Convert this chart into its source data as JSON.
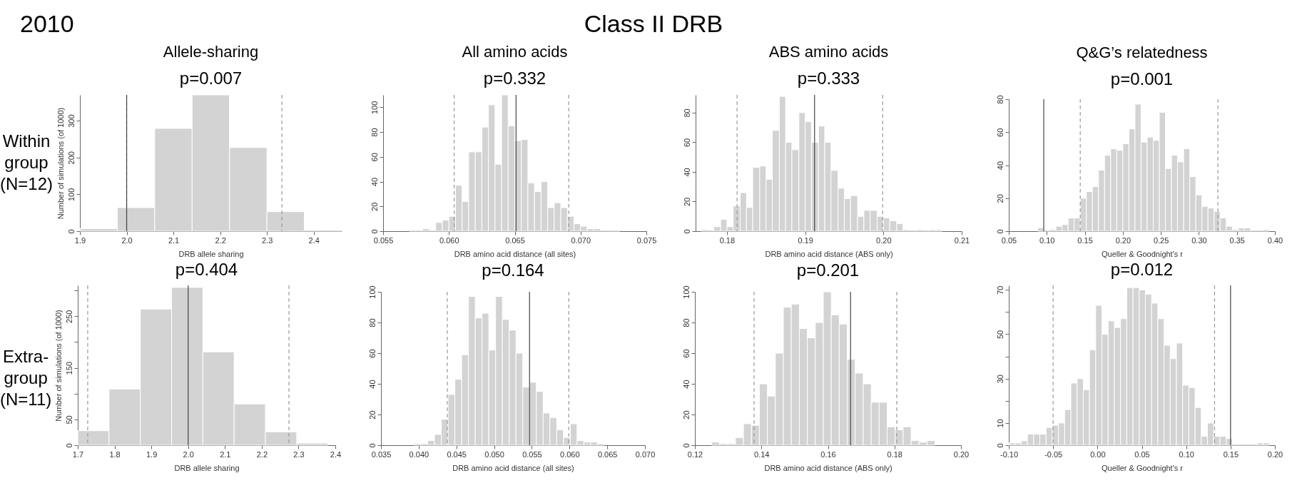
{
  "chart_data": [
    {
      "type": "histogram",
      "title": "Allele-sharing",
      "subtitle": "p=0.007",
      "xlabel": "DRB allele sharing",
      "ylabel": "Number of simulations (of 1000)",
      "color": "#d3d3d3",
      "annotations": [
        "2010",
        "Class II DRB",
        "Within group (N=12)"
      ],
      "bins": [
        1.9,
        1.98,
        2.06,
        2.14,
        2.22,
        2.3,
        2.38,
        2.46
      ],
      "values": [
        7,
        64,
        279,
        370,
        227,
        53,
        0
      ],
      "xlim": [
        1.9,
        2.46
      ],
      "xticks": [
        1.9,
        {
          "value": 2.0,
          "label": "2.0"
        },
        2.1,
        2.2,
        2.3,
        2.4
      ],
      "ylim": [
        0,
        370
      ],
      "yticks": [
        0,
        100,
        200,
        300
      ],
      "ref_lines": [
        {
          "axis": "x",
          "value": 2.0,
          "line_style": "dashed",
          "color": "#999999"
        },
        {
          "axis": "x",
          "value": 2.332,
          "line_style": "dashed",
          "color": "#999999"
        },
        {
          "axis": "x",
          "value": 2.0,
          "line_style": "solid",
          "color": "#444444"
        }
      ]
    },
    {
      "type": "histogram",
      "title": "All amino acids",
      "subtitle": "p=0.332",
      "xlabel": "DRB amino acid distance (all sites)",
      "color": "#d3d3d3",
      "bins": [
        0.057,
        0.0575,
        0.058,
        0.0585,
        0.059,
        0.0595,
        0.06,
        0.0605,
        0.061,
        0.0615,
        0.062,
        0.0625,
        0.063,
        0.0635,
        0.064,
        0.0645,
        0.065,
        0.0655,
        0.066,
        0.0665,
        0.067,
        0.0675,
        0.068,
        0.0685,
        0.069,
        0.0695,
        0.07,
        0.0705,
        0.071,
        0.0715,
        0.072,
        0.0725,
        0.073
      ],
      "values": [
        1,
        0,
        2,
        0,
        7,
        9,
        12,
        37,
        24,
        64,
        64,
        84,
        102,
        54,
        110,
        85,
        73,
        74,
        39,
        32,
        40,
        19,
        23,
        19,
        12,
        6,
        4,
        2,
        2,
        0,
        0,
        1
      ],
      "xlim": [
        0.055,
        0.075
      ],
      "xticks": [
        0.055,
        {
          "value": 0.06,
          "label": "0.060"
        },
        0.065,
        {
          "value": 0.07,
          "label": "0.070"
        },
        0.075
      ],
      "ylim": [
        0,
        110
      ],
      "yticks": [
        0,
        20,
        40,
        60,
        80,
        100
      ],
      "ref_lines": [
        {
          "axis": "x",
          "value": 0.0604,
          "line_style": "dashed",
          "color": "#999999"
        },
        {
          "axis": "x",
          "value": 0.0691,
          "line_style": "dashed",
          "color": "#999999"
        },
        {
          "axis": "x",
          "value": 0.0651,
          "line_style": "solid",
          "color": "#444444"
        }
      ]
    },
    {
      "type": "histogram",
      "title": "ABS amino acids",
      "subtitle": "p=0.333",
      "xlabel": "DRB amino acid distance (ABS only)",
      "color": "#d3d3d3",
      "bins": [
        0.1767,
        0.1775,
        0.1783,
        0.1792,
        0.18,
        0.1808,
        0.1817,
        0.1825,
        0.1833,
        0.1842,
        0.185,
        0.1858,
        0.1867,
        0.1875,
        0.1883,
        0.1892,
        0.19,
        0.1908,
        0.1917,
        0.1925,
        0.1933,
        0.1942,
        0.195,
        0.1958,
        0.1967,
        0.1975,
        0.1983,
        0.1992,
        0.2,
        0.2008,
        0.2017,
        0.2025,
        0.2033,
        0.2042,
        0.205,
        0.2058,
        0.2067,
        0.2075
      ],
      "values": [
        1,
        0,
        3,
        8,
        3,
        17,
        26,
        16,
        43,
        44,
        35,
        68,
        91,
        60,
        55,
        80,
        74,
        60,
        71,
        60,
        41,
        29,
        22,
        24,
        10,
        14,
        14,
        10,
        9,
        7,
        5,
        1,
        0,
        1,
        0,
        1,
        1
      ],
      "xlim": [
        0.176,
        0.21
      ],
      "xticks": [
        0.18,
        0.19,
        {
          "value": 0.2,
          "label": "0.20"
        },
        0.21
      ],
      "ylim": [
        0,
        92
      ],
      "yticks": [
        0,
        20,
        40,
        60,
        80
      ],
      "ref_lines": [
        {
          "axis": "x",
          "value": 0.1813,
          "line_style": "dashed",
          "color": "#999999"
        },
        {
          "axis": "x",
          "value": 0.1999,
          "line_style": "dashed",
          "color": "#999999"
        },
        {
          "axis": "x",
          "value": 0.1912,
          "line_style": "solid",
          "color": "#444444"
        }
      ]
    },
    {
      "type": "histogram",
      "title": "Q&G’s relatedness",
      "subtitle": "p=0.001",
      "xlabel": "Queller & Goodnight's r",
      "color": "#d3d3d3",
      "bins": [
        0.088,
        0.096,
        0.104,
        0.112,
        0.12,
        0.128,
        0.136,
        0.144,
        0.152,
        0.16,
        0.168,
        0.176,
        0.184,
        0.192,
        0.2,
        0.208,
        0.216,
        0.224,
        0.232,
        0.24,
        0.248,
        0.256,
        0.264,
        0.272,
        0.28,
        0.288,
        0.296,
        0.304,
        0.312,
        0.32,
        0.328,
        0.336,
        0.344,
        0.352,
        0.36,
        0.368,
        0.376,
        0.384,
        0.392
      ],
      "values": [
        2,
        0,
        1,
        3,
        4,
        8,
        8,
        20,
        24,
        27,
        37,
        46,
        50,
        49,
        53,
        62,
        77,
        54,
        57,
        55,
        72,
        38,
        46,
        42,
        50,
        33,
        22,
        15,
        14,
        12,
        8,
        3,
        1,
        2,
        2,
        0,
        0,
        1
      ],
      "xlim": [
        0.05,
        0.4
      ],
      "xticks": [
        0.05,
        {
          "value": 0.1,
          "label": "0.10"
        },
        0.15,
        {
          "value": 0.2,
          "label": "0.20"
        },
        0.25,
        {
          "value": 0.3,
          "label": "0.30"
        },
        0.35,
        {
          "value": 0.4,
          "label": "0.40"
        }
      ],
      "ylim": [
        0,
        80
      ],
      "yticks": [
        0,
        20,
        40,
        60,
        80
      ],
      "ref_lines": [
        {
          "axis": "x",
          "value": 0.144,
          "line_style": "dashed",
          "color": "#999999"
        },
        {
          "axis": "x",
          "value": 0.325,
          "line_style": "dashed",
          "color": "#999999"
        },
        {
          "axis": "x",
          "value": 0.096,
          "line_style": "solid",
          "color": "#444444"
        }
      ]
    },
    {
      "type": "histogram",
      "title": "p=0.404",
      "xlabel": "DRB allele sharing",
      "ylabel": "Number of simulations (of 1000)",
      "color": "#d3d3d3",
      "annotations": [
        "Extra-group (N=11)"
      ],
      "bins": [
        1.7,
        1.785,
        1.87,
        1.955,
        2.04,
        2.125,
        2.21,
        2.295,
        2.38
      ],
      "values": [
        28,
        109,
        264,
        306,
        181,
        80,
        26,
        4
      ],
      "xlim": [
        1.7,
        2.4
      ],
      "xticks": [
        1.7,
        1.8,
        1.9,
        {
          "value": 2.0,
          "label": "2.0"
        },
        2.1,
        2.2,
        2.3,
        2.4
      ],
      "ylim": [
        0,
        310
      ],
      "yticks": [
        0,
        50,
        {
          "value": 100,
          "label": null
        },
        150,
        {
          "value": 200,
          "label": null
        },
        250,
        {
          "value": 300,
          "label": null
        }
      ],
      "ref_lines": [
        {
          "axis": "x",
          "value": 1.727,
          "line_style": "dashed",
          "color": "#999999"
        },
        {
          "axis": "x",
          "value": 2.274,
          "line_style": "dashed",
          "color": "#999999"
        },
        {
          "axis": "x",
          "value": 2.0,
          "line_style": "solid",
          "color": "#444444"
        }
      ]
    },
    {
      "type": "histogram",
      "title": "p=0.164",
      "xlabel": "DRB amino acid distance (all sites)",
      "color": "#d3d3d3",
      "bins": [
        0.0394,
        0.0403,
        0.0412,
        0.0421,
        0.043,
        0.0439,
        0.0448,
        0.0457,
        0.0466,
        0.0475,
        0.0484,
        0.0493,
        0.0502,
        0.0511,
        0.052,
        0.0529,
        0.0538,
        0.0547,
        0.0556,
        0.0565,
        0.0574,
        0.0583,
        0.0592,
        0.0601,
        0.061,
        0.0619,
        0.0628,
        0.0637,
        0.0646
      ],
      "values": [
        1,
        1,
        3,
        7,
        17,
        33,
        43,
        59,
        97,
        83,
        86,
        62,
        97,
        82,
        75,
        60,
        38,
        41,
        35,
        21,
        18,
        10,
        5,
        14,
        3,
        2,
        2,
        1
      ],
      "xlim": [
        0.035,
        0.07
      ],
      "xticks": [
        0.035,
        {
          "value": 0.04,
          "label": "0.040"
        },
        0.045,
        {
          "value": 0.05,
          "label": "0.050"
        },
        0.055,
        {
          "value": 0.06,
          "label": "0.060"
        },
        0.065,
        {
          "value": 0.07,
          "label": "0.070"
        }
      ],
      "ylim": [
        0,
        100
      ],
      "yticks": [
        0,
        20,
        40,
        60,
        80,
        100
      ],
      "ref_lines": [
        {
          "axis": "x",
          "value": 0.0438,
          "line_style": "dashed",
          "color": "#999999"
        },
        {
          "axis": "x",
          "value": 0.0599,
          "line_style": "dashed",
          "color": "#999999"
        },
        {
          "axis": "x",
          "value": 0.0547,
          "line_style": "solid",
          "color": "#444444"
        }
      ]
    },
    {
      "type": "histogram",
      "title": "p=0.201",
      "xlabel": "DRB amino acid distance (ABS only)",
      "color": "#d3d3d3",
      "bins": [
        0.125,
        0.1274,
        0.1298,
        0.1322,
        0.1346,
        0.137,
        0.1394,
        0.1418,
        0.1442,
        0.1466,
        0.149,
        0.1514,
        0.1538,
        0.1562,
        0.1586,
        0.161,
        0.1634,
        0.1658,
        0.1682,
        0.1706,
        0.173,
        0.1754,
        0.1778,
        0.1802,
        0.1826,
        0.185,
        0.1874,
        0.1898,
        0.1922
      ],
      "values": [
        2,
        1,
        1,
        5,
        14,
        13,
        40,
        32,
        60,
        90,
        92,
        76,
        70,
        80,
        100,
        85,
        79,
        56,
        47,
        40,
        28,
        28,
        12,
        10,
        12,
        3,
        2,
        3
      ],
      "xlim": [
        0.12,
        0.2
      ],
      "xticks": [
        0.12,
        0.14,
        0.16,
        0.18,
        {
          "value": 0.2,
          "label": "0.20"
        }
      ],
      "ylim": [
        0,
        100
      ],
      "yticks": [
        0,
        20,
        40,
        60,
        80,
        100
      ],
      "ref_lines": [
        {
          "axis": "x",
          "value": 0.1378,
          "line_style": "dashed",
          "color": "#999999"
        },
        {
          "axis": "x",
          "value": 0.1807,
          "line_style": "dashed",
          "color": "#999999"
        },
        {
          "axis": "x",
          "value": 0.1668,
          "line_style": "solid",
          "color": "#444444"
        }
      ]
    },
    {
      "type": "histogram",
      "title": "p=0.012",
      "xlabel": "Queller & Goodnight's r",
      "color": "#d3d3d3",
      "bins": [
        -0.1,
        -0.093,
        -0.086,
        -0.079,
        -0.072,
        -0.065,
        -0.058,
        -0.051,
        -0.044,
        -0.037,
        -0.03,
        -0.023,
        -0.016,
        -0.009,
        -0.002,
        0.005,
        0.012,
        0.019,
        0.026,
        0.033,
        0.04,
        0.047,
        0.054,
        0.061,
        0.068,
        0.075,
        0.082,
        0.089,
        0.096,
        0.103,
        0.11,
        0.117,
        0.124,
        0.131,
        0.138,
        0.145,
        0.152,
        0.159,
        0.166,
        0.173,
        0.18,
        0.187,
        0.194
      ],
      "values": [
        1,
        1,
        2,
        5,
        5,
        5,
        8,
        9,
        10,
        16,
        28,
        30,
        25,
        43,
        63,
        50,
        56,
        53,
        57,
        71,
        71,
        70,
        68,
        64,
        57,
        45,
        39,
        46,
        27,
        26,
        17,
        4,
        10,
        4,
        4,
        3,
        0,
        0,
        0,
        0,
        1,
        1
      ],
      "xlim": [
        -0.1,
        0.2
      ],
      "xticks": [
        {
          "value": -0.1,
          "label": "-0.10"
        },
        -0.05,
        {
          "value": 0,
          "label": "0.00"
        },
        0.05,
        {
          "value": 0.1,
          "label": "0.10"
        },
        0.15,
        {
          "value": 0.2,
          "label": "0.20"
        }
      ],
      "ylim": [
        0,
        72
      ],
      "yticks": [
        0,
        10,
        {
          "value": 20,
          "label": null
        },
        30,
        {
          "value": 40,
          "label": null
        },
        50,
        {
          "value": 60,
          "label": null
        },
        70
      ],
      "ref_lines": [
        {
          "axis": "x",
          "value": -0.05,
          "line_style": "dashed",
          "color": "#999999"
        },
        {
          "axis": "x",
          "value": 0.132,
          "line_style": "dashed",
          "color": "#999999"
        },
        {
          "axis": "x",
          "value": 0.15,
          "line_style": "solid",
          "color": "#444444"
        }
      ]
    }
  ]
}
